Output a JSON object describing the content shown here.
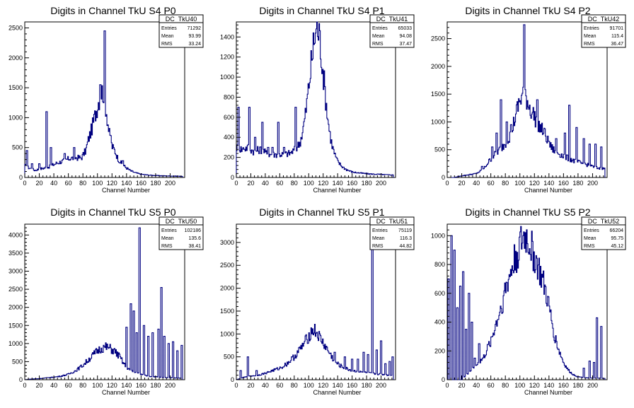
{
  "colors": {
    "line": "#000080",
    "axis": "#000000",
    "background": "#ffffff"
  },
  "chart_data": [
    {
      "type": "histogram",
      "title": "Digits in Channel TkU S4 P0",
      "xlabel": "Channel Number",
      "xlim": [
        0,
        220
      ],
      "ylim": [
        0,
        2600
      ],
      "xticks": [
        "0",
        "20",
        "40",
        "60",
        "80",
        "100",
        "120",
        "140",
        "160",
        "180",
        "200"
      ],
      "yticks": [
        "0",
        "500",
        "1000",
        "1500",
        "2000",
        "2500"
      ],
      "stats": {
        "name": "DC_TkU40",
        "entries": "71292",
        "mean": "93.99",
        "rms": "33.24"
      },
      "peaks": [
        [
          3,
          450
        ],
        [
          10,
          230
        ],
        [
          20,
          230
        ],
        [
          30,
          1100
        ],
        [
          36,
          500
        ],
        [
          55,
          400
        ],
        [
          68,
          500
        ],
        [
          95,
          850
        ],
        [
          104,
          1550
        ],
        [
          110,
          2450
        ],
        [
          118,
          700
        ],
        [
          135,
          280
        ]
      ],
      "curve": [
        [
          0,
          200
        ],
        [
          6,
          160
        ],
        [
          14,
          120
        ],
        [
          24,
          150
        ],
        [
          34,
          180
        ],
        [
          44,
          240
        ],
        [
          54,
          280
        ],
        [
          62,
          320
        ],
        [
          70,
          330
        ],
        [
          78,
          330
        ],
        [
          84,
          450
        ],
        [
          88,
          650
        ],
        [
          92,
          800
        ],
        [
          96,
          1000
        ],
        [
          100,
          1200
        ],
        [
          104,
          1400
        ],
        [
          108,
          1450
        ],
        [
          112,
          1150
        ],
        [
          116,
          750
        ],
        [
          120,
          520
        ],
        [
          124,
          450
        ],
        [
          128,
          320
        ],
        [
          132,
          250
        ],
        [
          136,
          200
        ],
        [
          140,
          160
        ],
        [
          146,
          110
        ],
        [
          152,
          80
        ],
        [
          160,
          55
        ],
        [
          170,
          40
        ],
        [
          185,
          30
        ],
        [
          200,
          25
        ],
        [
          215,
          20
        ]
      ]
    },
    {
      "type": "histogram",
      "title": "Digits in Channel TkU S4 P1",
      "xlabel": "Channel Number",
      "xlim": [
        0,
        220
      ],
      "ylim": [
        0,
        1550
      ],
      "xticks": [
        "0",
        "20",
        "40",
        "60",
        "80",
        "100",
        "120",
        "140",
        "160",
        "180",
        "200"
      ],
      "yticks": [
        "0",
        "200",
        "400",
        "600",
        "800",
        "1000",
        "1200",
        "1400"
      ],
      "stats": {
        "name": "DC_TkU41",
        "entries": "65033",
        "mean": "94.08",
        "rms": "37.47"
      },
      "peaks": [
        [
          3,
          700
        ],
        [
          10,
          280
        ],
        [
          18,
          700
        ],
        [
          26,
          400
        ],
        [
          36,
          550
        ],
        [
          44,
          300
        ],
        [
          50,
          300
        ],
        [
          58,
          550
        ],
        [
          66,
          300
        ],
        [
          72,
          200
        ],
        [
          82,
          700
        ],
        [
          88,
          300
        ]
      ],
      "curve": [
        [
          0,
          300
        ],
        [
          8,
          280
        ],
        [
          16,
          300
        ],
        [
          24,
          260
        ],
        [
          34,
          280
        ],
        [
          44,
          230
        ],
        [
          54,
          230
        ],
        [
          64,
          230
        ],
        [
          74,
          240
        ],
        [
          82,
          280
        ],
        [
          88,
          350
        ],
        [
          92,
          470
        ],
        [
          96,
          650
        ],
        [
          100,
          900
        ],
        [
          104,
          1150
        ],
        [
          108,
          1400
        ],
        [
          112,
          1500
        ],
        [
          116,
          1350
        ],
        [
          120,
          1050
        ],
        [
          124,
          750
        ],
        [
          128,
          500
        ],
        [
          132,
          330
        ],
        [
          136,
          230
        ],
        [
          140,
          160
        ],
        [
          146,
          110
        ],
        [
          152,
          80
        ],
        [
          160,
          55
        ],
        [
          170,
          45
        ],
        [
          185,
          35
        ],
        [
          200,
          30
        ],
        [
          215,
          25
        ]
      ]
    },
    {
      "type": "histogram",
      "title": "Digits in Channel TkU S4 P2",
      "xlabel": "Channel Number",
      "xlim": [
        0,
        220
      ],
      "ylim": [
        0,
        2800
      ],
      "xticks": [
        "0",
        "20",
        "40",
        "60",
        "80",
        "100",
        "120",
        "140",
        "160",
        "180",
        "200"
      ],
      "yticks": [
        "0",
        "500",
        "1000",
        "1500",
        "2000",
        "2500"
      ],
      "stats": {
        "name": "DC_TkU42",
        "entries": "91701",
        "mean": "115.4",
        "rms": "36.47"
      },
      "peaks": [
        [
          48,
          200
        ],
        [
          62,
          550
        ],
        [
          68,
          800
        ],
        [
          74,
          1400
        ],
        [
          82,
          1000
        ],
        [
          88,
          950
        ],
        [
          96,
          700
        ],
        [
          106,
          2750
        ],
        [
          116,
          1000
        ],
        [
          124,
          1400
        ],
        [
          140,
          650
        ],
        [
          150,
          700
        ],
        [
          162,
          800
        ],
        [
          168,
          1300
        ],
        [
          178,
          900
        ],
        [
          188,
          700
        ],
        [
          196,
          600
        ],
        [
          204,
          600
        ],
        [
          212,
          550
        ]
      ],
      "curve": [
        [
          0,
          0
        ],
        [
          10,
          0
        ],
        [
          20,
          30
        ],
        [
          30,
          50
        ],
        [
          40,
          70
        ],
        [
          50,
          150
        ],
        [
          58,
          300
        ],
        [
          66,
          420
        ],
        [
          74,
          520
        ],
        [
          82,
          650
        ],
        [
          88,
          800
        ],
        [
          94,
          1100
        ],
        [
          98,
          1300
        ],
        [
          102,
          1450
        ],
        [
          106,
          1550
        ],
        [
          110,
          1400
        ],
        [
          114,
          1250
        ],
        [
          118,
          1150
        ],
        [
          122,
          1050
        ],
        [
          128,
          900
        ],
        [
          134,
          800
        ],
        [
          140,
          600
        ],
        [
          146,
          500
        ],
        [
          152,
          450
        ],
        [
          158,
          400
        ],
        [
          166,
          350
        ],
        [
          174,
          300
        ],
        [
          184,
          260
        ],
        [
          194,
          220
        ],
        [
          204,
          180
        ],
        [
          212,
          160
        ]
      ]
    },
    {
      "type": "histogram",
      "title": "Digits in Channel TkU S5 P0",
      "xlabel": "Channel Number",
      "xlim": [
        0,
        220
      ],
      "ylim": [
        0,
        4300
      ],
      "xticks": [
        "0",
        "20",
        "40",
        "60",
        "80",
        "100",
        "120",
        "140",
        "160",
        "180",
        "200"
      ],
      "yticks": [
        "0",
        "500",
        "1000",
        "1500",
        "2000",
        "2500",
        "3000",
        "3500",
        "4000"
      ],
      "stats": {
        "name": "DC_TkU50",
        "entries": "102186",
        "mean": "135.6",
        "rms": "38.41"
      },
      "peaks": [
        [
          140,
          1450
        ],
        [
          146,
          2100
        ],
        [
          150,
          1900
        ],
        [
          154,
          1300
        ],
        [
          158,
          4200
        ],
        [
          164,
          1500
        ],
        [
          170,
          1200
        ],
        [
          176,
          1300
        ],
        [
          184,
          1400
        ],
        [
          188,
          2550
        ],
        [
          192,
          1200
        ],
        [
          198,
          1000
        ],
        [
          204,
          1050
        ],
        [
          210,
          800
        ],
        [
          216,
          950
        ]
      ],
      "curve": [
        [
          0,
          0
        ],
        [
          10,
          20
        ],
        [
          20,
          30
        ],
        [
          30,
          50
        ],
        [
          40,
          70
        ],
        [
          50,
          100
        ],
        [
          60,
          150
        ],
        [
          70,
          250
        ],
        [
          80,
          400
        ],
        [
          90,
          600
        ],
        [
          100,
          800
        ],
        [
          106,
          880
        ],
        [
          112,
          900
        ],
        [
          118,
          860
        ],
        [
          124,
          780
        ],
        [
          130,
          650
        ],
        [
          136,
          450
        ],
        [
          140,
          350
        ],
        [
          146,
          250
        ],
        [
          152,
          200
        ],
        [
          160,
          150
        ],
        [
          170,
          100
        ],
        [
          180,
          80
        ],
        [
          190,
          60
        ],
        [
          200,
          50
        ],
        [
          210,
          50
        ],
        [
          216,
          40
        ]
      ]
    },
    {
      "type": "histogram",
      "title": "Digits in Channel TkU S5 P1",
      "xlabel": "Channel Number",
      "xlim": [
        0,
        220
      ],
      "ylim": [
        0,
        3400
      ],
      "xticks": [
        "0",
        "20",
        "40",
        "60",
        "80",
        "100",
        "120",
        "140",
        "160",
        "180",
        "200"
      ],
      "yticks": [
        "0",
        "500",
        "1000",
        "1500",
        "2000",
        "2500",
        "3000"
      ],
      "stats": {
        "name": "DC_TkU51",
        "entries": "75119",
        "mean": "116.3",
        "rms": "44.82"
      },
      "peaks": [
        [
          6,
          200
        ],
        [
          16,
          500
        ],
        [
          28,
          200
        ],
        [
          136,
          600
        ],
        [
          150,
          500
        ],
        [
          160,
          450
        ],
        [
          168,
          450
        ],
        [
          176,
          600
        ],
        [
          182,
          550
        ],
        [
          188,
          3150
        ],
        [
          194,
          650
        ],
        [
          200,
          850
        ],
        [
          206,
          350
        ],
        [
          212,
          400
        ],
        [
          216,
          500
        ]
      ],
      "curve": [
        [
          0,
          0
        ],
        [
          10,
          50
        ],
        [
          20,
          80
        ],
        [
          30,
          100
        ],
        [
          40,
          140
        ],
        [
          50,
          200
        ],
        [
          60,
          250
        ],
        [
          70,
          350
        ],
        [
          80,
          500
        ],
        [
          90,
          700
        ],
        [
          96,
          850
        ],
        [
          102,
          1000
        ],
        [
          106,
          1100
        ],
        [
          110,
          1050
        ],
        [
          114,
          950
        ],
        [
          118,
          850
        ],
        [
          124,
          700
        ],
        [
          130,
          550
        ],
        [
          136,
          400
        ],
        [
          142,
          320
        ],
        [
          150,
          250
        ],
        [
          160,
          200
        ],
        [
          170,
          170
        ],
        [
          180,
          150
        ],
        [
          190,
          130
        ],
        [
          200,
          120
        ],
        [
          210,
          100
        ],
        [
          216,
          100
        ]
      ]
    },
    {
      "type": "histogram",
      "title": "Digits in Channel TkU S5 P2",
      "xlabel": "Channel Number",
      "xlim": [
        0,
        220
      ],
      "ylim": [
        0,
        1080
      ],
      "xticks": [
        "0",
        "20",
        "40",
        "60",
        "80",
        "100",
        "120",
        "140",
        "160",
        "180",
        "200"
      ],
      "yticks": [
        "0",
        "200",
        "400",
        "600",
        "800",
        "1000"
      ],
      "stats": {
        "name": "DC_TkU52",
        "entries": "66204",
        "mean": "95.75",
        "rms": "45.12"
      },
      "peaks": [
        [
          2,
          700
        ],
        [
          6,
          1000
        ],
        [
          10,
          900
        ],
        [
          14,
          500
        ],
        [
          18,
          650
        ],
        [
          22,
          750
        ],
        [
          26,
          350
        ],
        [
          30,
          600
        ],
        [
          34,
          400
        ],
        [
          38,
          150
        ],
        [
          44,
          250
        ],
        [
          140,
          50
        ],
        [
          188,
          80
        ],
        [
          196,
          130
        ],
        [
          202,
          120
        ],
        [
          206,
          430
        ],
        [
          212,
          370
        ]
      ],
      "curve": [
        [
          0,
          0
        ],
        [
          20,
          0
        ],
        [
          30,
          50
        ],
        [
          40,
          100
        ],
        [
          50,
          150
        ],
        [
          56,
          220
        ],
        [
          62,
          300
        ],
        [
          68,
          400
        ],
        [
          74,
          500
        ],
        [
          80,
          620
        ],
        [
          86,
          720
        ],
        [
          92,
          820
        ],
        [
          98,
          900
        ],
        [
          104,
          970
        ],
        [
          108,
          990
        ],
        [
          112,
          960
        ],
        [
          118,
          880
        ],
        [
          124,
          800
        ],
        [
          130,
          700
        ],
        [
          136,
          600
        ],
        [
          142,
          450
        ],
        [
          148,
          300
        ],
        [
          154,
          200
        ],
        [
          160,
          120
        ],
        [
          166,
          70
        ],
        [
          172,
          40
        ],
        [
          180,
          20
        ],
        [
          190,
          15
        ],
        [
          200,
          10
        ],
        [
          212,
          10
        ]
      ]
    }
  ]
}
